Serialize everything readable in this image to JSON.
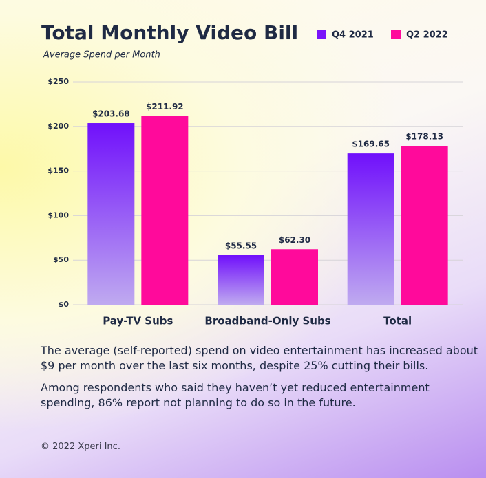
{
  "chart_data": {
    "type": "bar",
    "title": "Total Monthly Video Bill",
    "subtitle": "Average Spend per Month",
    "categories": [
      "Pay-TV Subs",
      "Broadband-Only Subs",
      "Total"
    ],
    "series": [
      {
        "name": "Q4 2021",
        "color": "#7a14fa",
        "values": [
          203.68,
          55.55,
          169.65
        ],
        "value_labels": [
          "$203.68",
          "$55.55",
          "$169.65"
        ]
      },
      {
        "name": "Q2 2022",
        "color": "#ff0a9b",
        "values": [
          211.92,
          62.3,
          178.13
        ],
        "value_labels": [
          "$211.92",
          "$62.30",
          "$178.13"
        ]
      }
    ],
    "ylim": [
      0,
      250
    ],
    "yticks": [
      {
        "value": 0,
        "label": "$0"
      },
      {
        "value": 50,
        "label": "$50"
      },
      {
        "value": 100,
        "label": "$100"
      },
      {
        "value": 150,
        "label": "$150"
      },
      {
        "value": 200,
        "label": "$200"
      },
      {
        "value": 250,
        "label": "$250"
      }
    ],
    "grid": true,
    "legend": "top-right"
  },
  "paragraphs": [
    "The average (self-reported) spend on video entertainment has increased about $9 per month over the last six months, despite 25% cutting their bills.",
    "Among respondents who said they haven’t yet reduced entertainment spending, 86% report not planning to do so in the future."
  ],
  "footer": "© 2022 Xperi Inc."
}
